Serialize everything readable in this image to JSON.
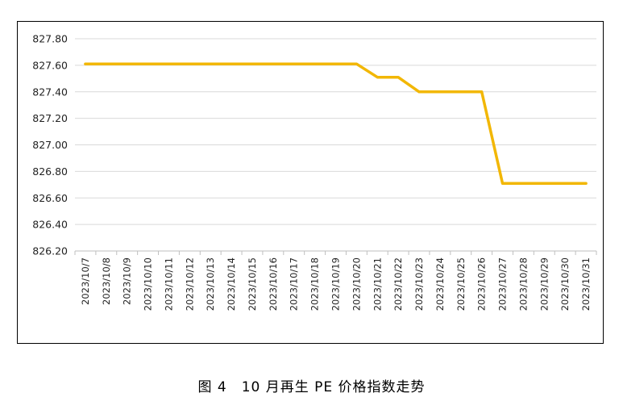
{
  "caption": "图 4　10 月再生 PE 价格指数走势",
  "colors": {
    "line": "#F2B705",
    "grid": "#d9d9d9",
    "axis": "#bfbfbf"
  },
  "chart_data": {
    "type": "line",
    "title": "",
    "xlabel": "",
    "ylabel": "",
    "ylim": [
      826.2,
      827.8
    ],
    "yticks": [
      "827.80",
      "827.60",
      "827.40",
      "827.20",
      "827.00",
      "826.80",
      "826.60",
      "826.40",
      "826.20"
    ],
    "grid": true,
    "legend": "none",
    "categories": [
      "2023/10/7",
      "2023/10/8",
      "2023/10/9",
      "2023/10/10",
      "2023/10/11",
      "2023/10/12",
      "2023/10/13",
      "2023/10/14",
      "2023/10/15",
      "2023/10/16",
      "2023/10/17",
      "2023/10/18",
      "2023/10/19",
      "2023/10/20",
      "2023/10/21",
      "2023/10/22",
      "2023/10/23",
      "2023/10/24",
      "2023/10/25",
      "2023/10/26",
      "2023/10/27",
      "2023/10/28",
      "2023/10/29",
      "2023/10/30",
      "2023/10/31"
    ],
    "series": [
      {
        "values": [
          827.61,
          827.61,
          827.61,
          827.61,
          827.61,
          827.61,
          827.61,
          827.61,
          827.61,
          827.61,
          827.61,
          827.61,
          827.61,
          827.61,
          827.51,
          827.51,
          827.4,
          827.4,
          827.4,
          827.4,
          826.71,
          826.71,
          826.71,
          826.71,
          826.71
        ]
      }
    ]
  }
}
